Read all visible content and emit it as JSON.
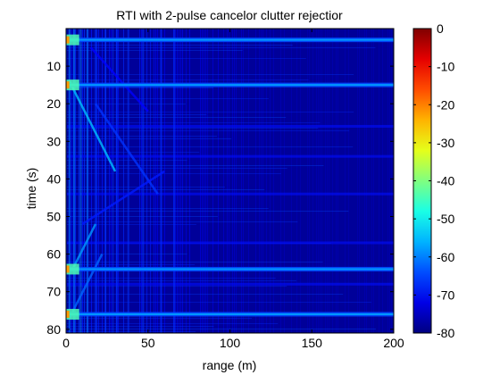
{
  "chart_data": {
    "type": "heatmap",
    "title": "RTI with 2-pulse cancelor clutter rejectior",
    "xlabel": "range (m)",
    "ylabel": "time (s)",
    "xlim": [
      0,
      200
    ],
    "ylim": [
      81,
      0
    ],
    "x_ticks": [
      "0",
      "50",
      "100",
      "150",
      "200"
    ],
    "y_ticks": [
      "10",
      "20",
      "30",
      "40",
      "50",
      "60",
      "70",
      "80"
    ],
    "colorbar": {
      "range": [
        -80,
        0
      ],
      "ticks": [
        "0",
        "-10",
        "-20",
        "-30",
        "-40",
        "-50",
        "-60",
        "-70",
        "-80"
      ],
      "colormap": "jet"
    },
    "features": {
      "background_level_db": -78,
      "bright_time_bands_s": [
        3,
        15,
        64,
        76
      ],
      "stripe_time_bands_s": [
        26,
        34,
        44,
        57,
        68
      ],
      "near_range_columns_m": [
        2,
        5,
        9,
        13,
        18,
        24,
        31,
        38,
        47,
        58,
        66
      ],
      "target_tracks": [
        {
          "t": [
            14,
            38
          ],
          "r": [
            2,
            30
          ],
          "level_db": -55
        },
        {
          "t": [
            20,
            44
          ],
          "r": [
            18,
            56
          ],
          "level_db": -66
        },
        {
          "t": [
            38,
            52
          ],
          "r": [
            60,
            10
          ],
          "level_db": -68
        },
        {
          "t": [
            52,
            64
          ],
          "r": [
            18,
            4
          ],
          "level_db": -58
        },
        {
          "t": [
            5,
            22
          ],
          "r": [
            15,
            50
          ],
          "level_db": -70
        },
        {
          "t": [
            60,
            77
          ],
          "r": [
            22,
            2
          ],
          "level_db": -62
        }
      ]
    }
  },
  "colors": {
    "jet_low": "#00008f",
    "jet_high": "#800000",
    "axes": "#000000",
    "background": "#ffffff"
  }
}
